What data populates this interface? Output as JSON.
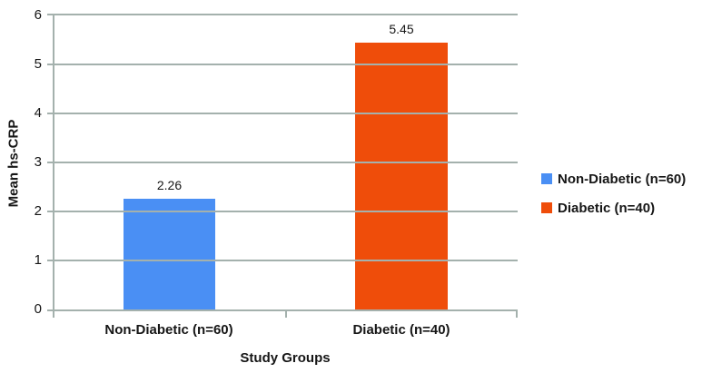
{
  "chart_data": {
    "type": "bar",
    "title": "",
    "categories": [
      "Non-Diabetic (n=60)",
      "Diabetic (n=40)"
    ],
    "values": [
      2.26,
      5.45
    ],
    "value_labels": [
      "2.26",
      "5.45"
    ],
    "bar_colors": [
      "#4a8ff4",
      "#ef4d0a"
    ],
    "xlabel": "Study Groups",
    "ylabel": "Mean hs-CRP",
    "ylim": [
      0,
      6
    ],
    "yticks": [
      "0",
      "1",
      "2",
      "3",
      "4",
      "5",
      "6"
    ],
    "grid": "horizontal-only",
    "gridline_color": "#a4b1ad",
    "axis_color": "#a4b1ad",
    "text_color": "#161616",
    "background_color": "#ffffff",
    "legend": {
      "position": "right",
      "entries": [
        {
          "label": "Non-Diabetic (n=60)",
          "color": "#4a8ff4"
        },
        {
          "label": "Diabetic (n=40)",
          "color": "#ef4d0a"
        }
      ]
    }
  }
}
